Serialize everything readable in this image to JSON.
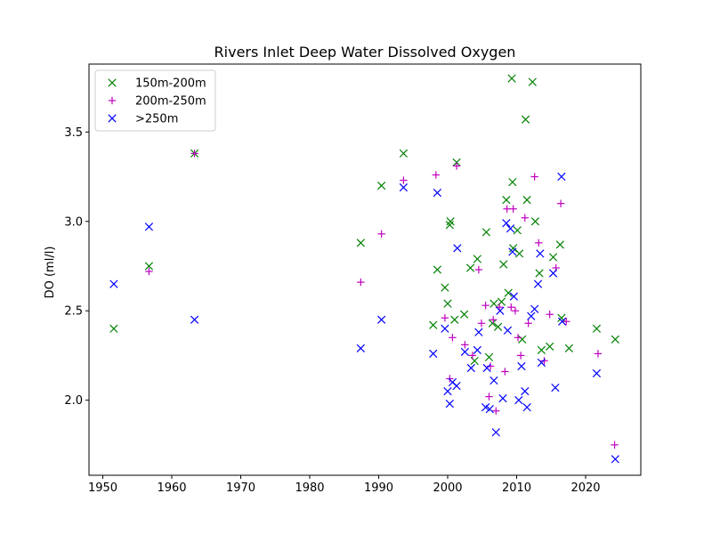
{
  "chart_data": {
    "type": "scatter",
    "title": "Rivers Inlet Deep Water Dissolved Oxygen",
    "xlabel": "",
    "ylabel": "DO (ml/l)",
    "xlim": [
      1948,
      2028
    ],
    "ylim": [
      1.58,
      3.88
    ],
    "xticks": [
      1950,
      1960,
      1970,
      1980,
      1990,
      2000,
      2010,
      2020
    ],
    "yticks": [
      2.0,
      2.5,
      3.0,
      3.5
    ],
    "ytick_labels": [
      "2.0",
      "2.5",
      "3.0",
      "3.5"
    ],
    "grid": false,
    "legend_position": "top-left",
    "series": [
      {
        "name": "150m-200m",
        "marker": "x",
        "color": "#008000",
        "x": [
          1951.6,
          1956.7,
          1963.3,
          1987.4,
          1990.4,
          1993.6,
          1997.9,
          1998.5,
          1999.6,
          2000.0,
          2000.3,
          2000.4,
          2001.0,
          2001.3,
          2002.4,
          2003.3,
          2003.9,
          2004.3,
          2005.6,
          2006.0,
          2006.5,
          2006.7,
          2007.3,
          2007.8,
          2008.1,
          2008.5,
          2008.8,
          2009.3,
          2009.4,
          2009.5,
          2010.1,
          2010.4,
          2010.8,
          2011.3,
          2011.5,
          2012.3,
          2012.7,
          2013.3,
          2013.6,
          2014.8,
          2015.3,
          2016.3,
          2016.5,
          2017.6,
          2021.6,
          2024.3
        ],
        "y": [
          2.4,
          2.75,
          3.38,
          2.88,
          3.2,
          3.38,
          2.42,
          2.73,
          2.63,
          2.54,
          2.98,
          3.0,
          2.45,
          3.33,
          2.48,
          2.74,
          2.22,
          2.79,
          2.94,
          2.24,
          2.43,
          2.54,
          2.41,
          2.55,
          2.76,
          3.12,
          2.6,
          3.8,
          3.22,
          2.85,
          2.95,
          2.82,
          2.34,
          3.57,
          3.12,
          3.78,
          3.0,
          2.71,
          2.28,
          2.3,
          2.8,
          2.87,
          2.46,
          2.29,
          2.4,
          2.34
        ]
      },
      {
        "name": "200m-250m",
        "marker": "+",
        "color": "#bf00bf",
        "x": [
          1956.7,
          1963.3,
          1987.4,
          1990.4,
          1993.6,
          1998.3,
          1999.6,
          2000.3,
          2000.7,
          2001.3,
          2002.5,
          2003.6,
          2004.5,
          2004.9,
          2005.5,
          2006.0,
          2006.2,
          2006.6,
          2007.0,
          2007.5,
          2008.3,
          2008.6,
          2009.2,
          2009.5,
          2009.8,
          2010.2,
          2010.6,
          2011.2,
          2011.7,
          2012.6,
          2013.2,
          2014.0,
          2014.8,
          2015.7,
          2016.4,
          2017.2,
          2021.8,
          2024.2
        ],
        "y": [
          2.72,
          3.38,
          2.66,
          2.93,
          3.23,
          3.26,
          2.46,
          2.12,
          2.35,
          3.31,
          2.31,
          2.25,
          2.73,
          2.43,
          2.53,
          2.02,
          2.19,
          2.45,
          1.94,
          2.52,
          2.16,
          3.07,
          2.52,
          3.07,
          2.5,
          2.35,
          2.25,
          3.02,
          2.43,
          3.25,
          2.88,
          2.22,
          2.48,
          2.74,
          3.1,
          2.44,
          2.26,
          1.75
        ]
      },
      {
        "name": ">250m",
        "marker": "x",
        "color": "#0000ff",
        "x": [
          1951.6,
          1956.7,
          1963.3,
          1987.4,
          1990.4,
          1993.6,
          1997.9,
          1998.5,
          1999.6,
          2000.0,
          2000.3,
          2000.7,
          2001.3,
          2001.4,
          2002.5,
          2003.4,
          2004.3,
          2004.5,
          2005.5,
          2005.7,
          2006.1,
          2006.7,
          2007.0,
          2007.6,
          2008.0,
          2008.5,
          2008.7,
          2009.1,
          2009.4,
          2009.6,
          2010.3,
          2010.7,
          2011.2,
          2011.5,
          2012.1,
          2012.6,
          2013.1,
          2013.4,
          2013.6,
          2015.3,
          2015.6,
          2016.5,
          2016.6,
          2021.6,
          2024.3
        ],
        "y": [
          2.65,
          2.97,
          2.45,
          2.29,
          2.45,
          3.19,
          2.26,
          3.16,
          2.4,
          2.05,
          1.98,
          2.1,
          2.08,
          2.85,
          2.27,
          2.18,
          2.28,
          2.38,
          1.96,
          2.18,
          1.95,
          2.11,
          1.82,
          2.5,
          2.01,
          2.99,
          2.39,
          2.96,
          2.83,
          2.58,
          2.0,
          2.19,
          2.05,
          1.96,
          2.47,
          2.51,
          2.65,
          2.82,
          2.21,
          2.71,
          2.07,
          3.25,
          2.44,
          2.15,
          1.67
        ]
      }
    ]
  }
}
